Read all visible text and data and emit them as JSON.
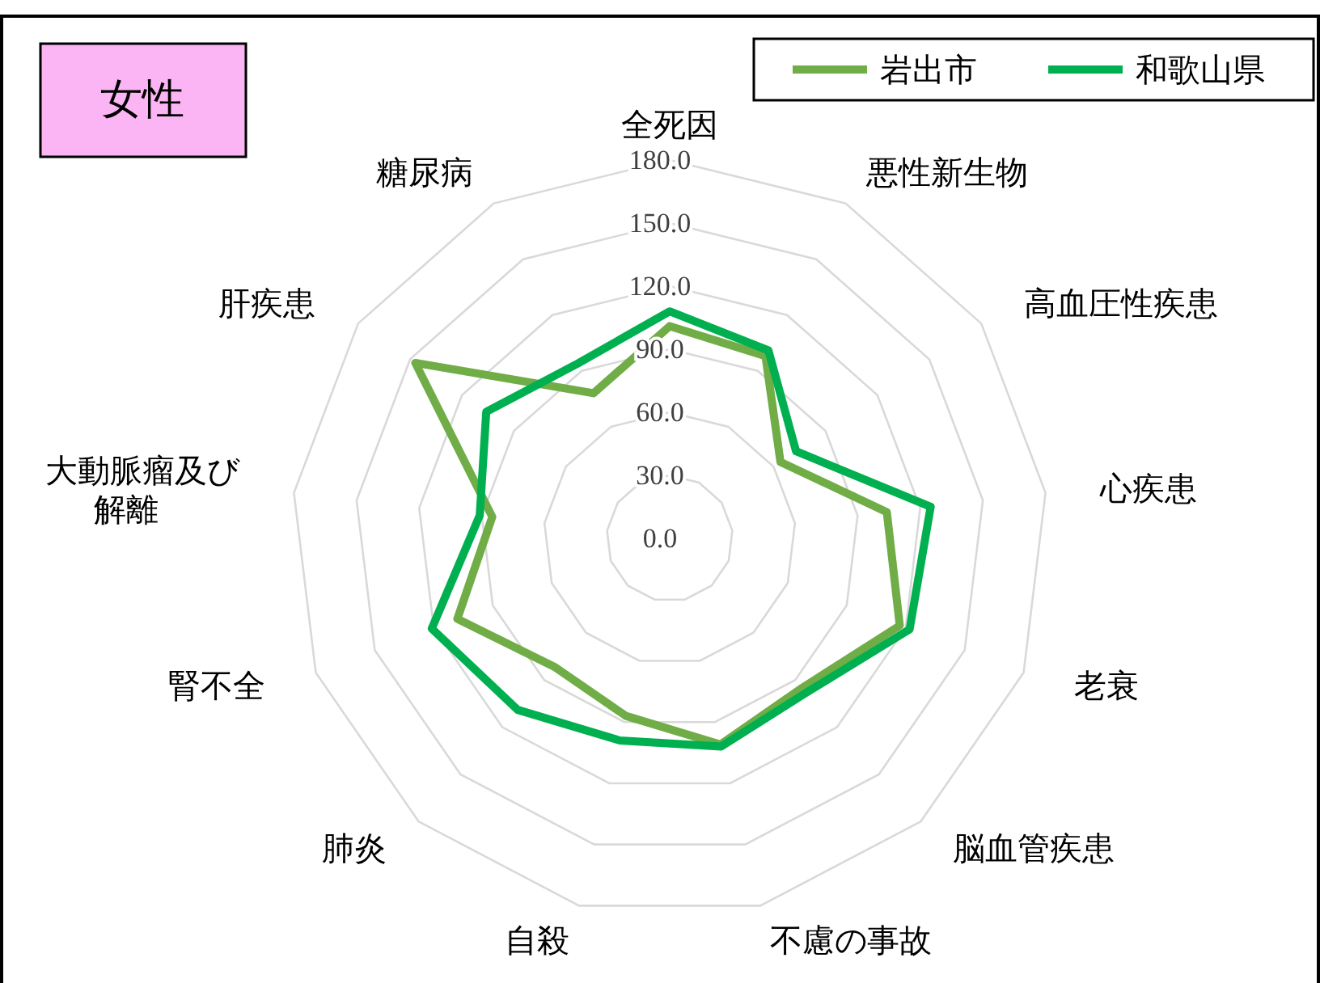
{
  "chart_data": {
    "type": "radar",
    "title": "女性",
    "categories": [
      "全死因",
      "悪性新生物",
      "高血圧性疾患",
      "心疾患",
      "老衰",
      "脳血管疾患",
      "不慮の事故",
      "自殺",
      "肺炎",
      "腎不全",
      "大動脈瘤及び解離",
      "肝疾患",
      "糖尿病"
    ],
    "series": [
      {
        "name": "岩出市",
        "color": "#70ad47",
        "values": [
          101,
          98,
          64,
          104,
          117,
          95,
          101,
          87,
          82,
          108,
          85,
          147,
          78
        ]
      },
      {
        "name": "和歌山県",
        "color": "#00b050",
        "values": [
          108,
          101,
          73,
          125,
          122,
          98,
          102,
          99,
          109,
          121,
          91,
          106,
          94
        ]
      }
    ],
    "ylim": [
      0,
      180
    ],
    "yticks": [
      {
        "value": 0,
        "label": "0.0"
      },
      {
        "value": 30,
        "label": "30.0"
      },
      {
        "value": 60,
        "label": "60.0"
      },
      {
        "value": 90,
        "label": "90.0"
      },
      {
        "value": 120,
        "label": "120.0"
      },
      {
        "value": 150,
        "label": "150.0"
      },
      {
        "value": 180,
        "label": "180.0"
      }
    ],
    "grid": true,
    "legend": "top right",
    "marker": "none",
    "line_style": "solid"
  }
}
